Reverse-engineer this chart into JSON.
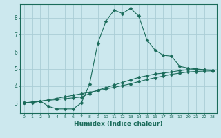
{
  "xlabel": "Humidex (Indice chaleur)",
  "ylabel": "",
  "bg_color": "#cce8ee",
  "line_color": "#1a6b5a",
  "grid_color": "#aacdd6",
  "xlim": [
    -0.5,
    23.5
  ],
  "ylim": [
    2.4,
    8.8
  ],
  "xticks": [
    0,
    1,
    2,
    3,
    4,
    5,
    6,
    7,
    8,
    9,
    10,
    11,
    12,
    13,
    14,
    15,
    16,
    17,
    18,
    19,
    20,
    21,
    22,
    23
  ],
  "yticks": [
    3,
    4,
    5,
    6,
    7,
    8
  ],
  "line1_x": [
    0,
    1,
    2,
    3,
    4,
    5,
    6,
    7,
    8,
    9,
    10,
    11,
    12,
    13,
    14,
    15,
    16,
    17,
    18,
    19,
    20,
    21,
    22,
    23
  ],
  "line1_y": [
    3.0,
    3.0,
    3.1,
    2.8,
    2.65,
    2.65,
    2.65,
    3.0,
    4.1,
    6.5,
    7.8,
    8.45,
    8.25,
    8.55,
    8.1,
    6.7,
    6.1,
    5.8,
    5.75,
    5.15,
    5.05,
    5.0,
    4.95,
    4.9
  ],
  "line2_x": [
    0,
    1,
    2,
    3,
    4,
    5,
    6,
    7,
    8,
    9,
    10,
    11,
    12,
    13,
    14,
    15,
    16,
    17,
    18,
    19,
    20,
    21,
    22,
    23
  ],
  "line2_y": [
    3.0,
    3.05,
    3.1,
    3.15,
    3.2,
    3.25,
    3.3,
    3.35,
    3.55,
    3.75,
    3.9,
    4.05,
    4.2,
    4.35,
    4.5,
    4.6,
    4.7,
    4.75,
    4.82,
    4.9,
    4.95,
    4.97,
    4.95,
    4.93
  ],
  "line3_x": [
    0,
    1,
    2,
    3,
    4,
    5,
    6,
    7,
    8,
    9,
    10,
    11,
    12,
    13,
    14,
    15,
    16,
    17,
    18,
    19,
    20,
    21,
    22,
    23
  ],
  "line3_y": [
    3.0,
    3.05,
    3.1,
    3.18,
    3.27,
    3.36,
    3.45,
    3.54,
    3.63,
    3.72,
    3.82,
    3.92,
    4.02,
    4.12,
    4.25,
    4.37,
    4.48,
    4.58,
    4.68,
    4.75,
    4.82,
    4.85,
    4.87,
    4.88
  ]
}
